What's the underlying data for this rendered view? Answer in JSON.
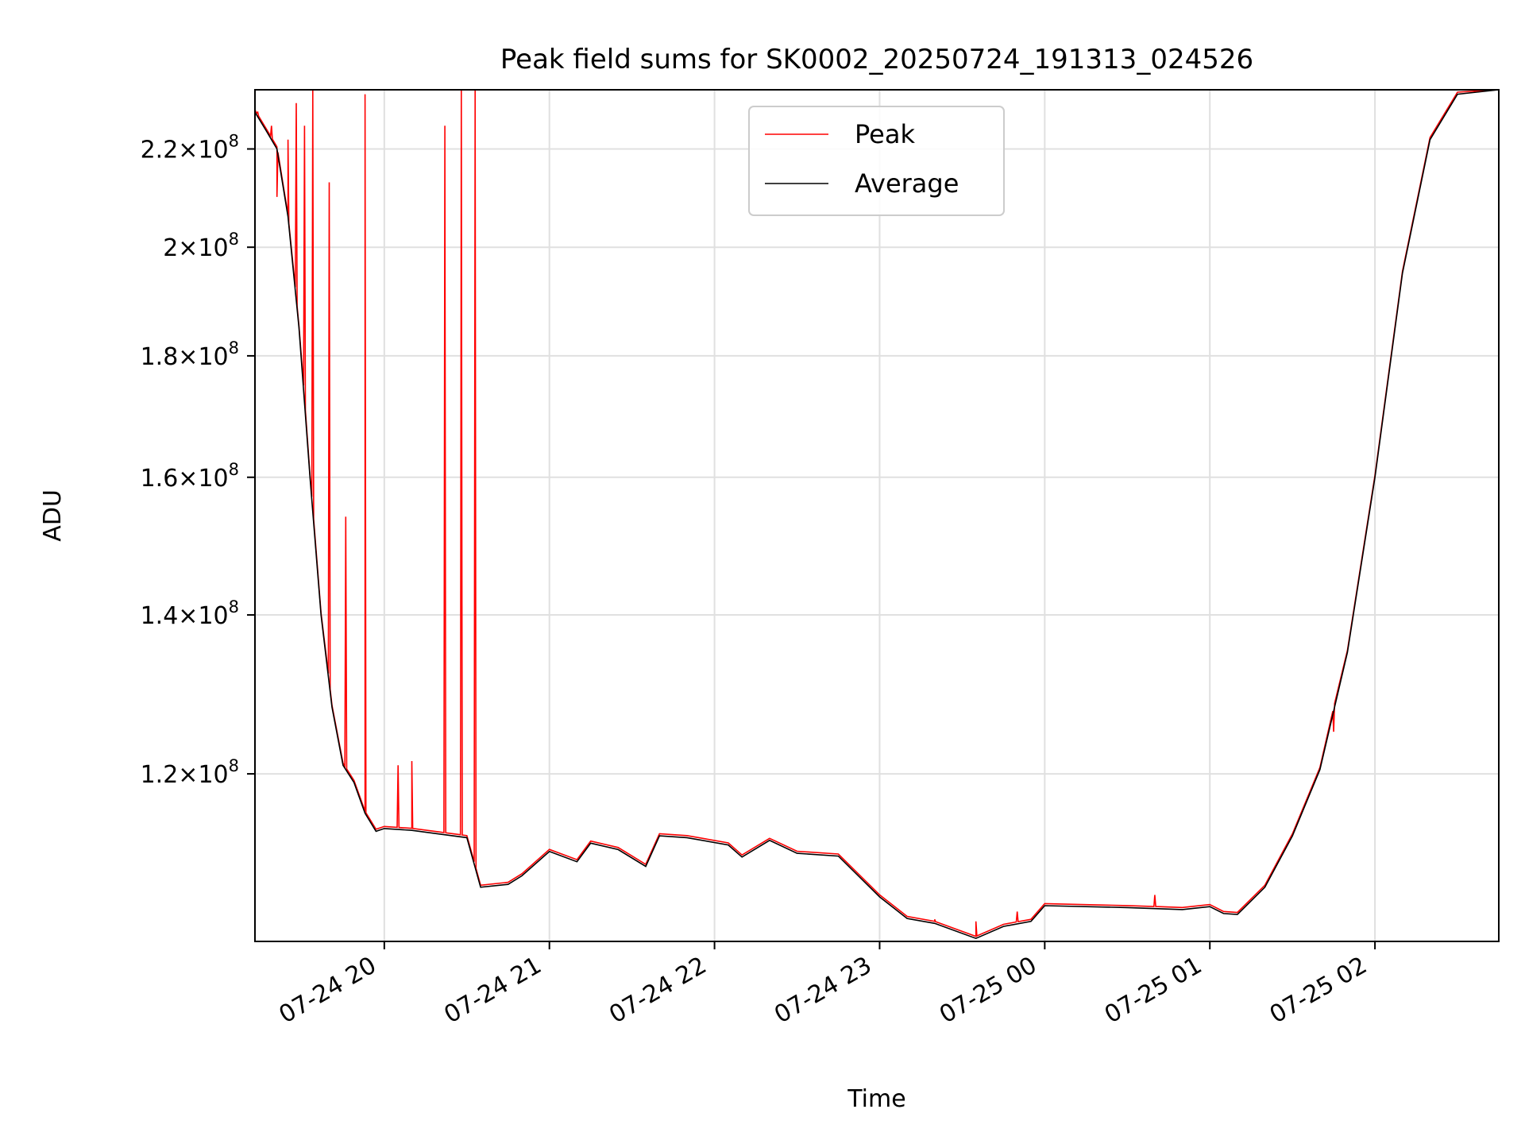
{
  "chart_data": {
    "type": "line",
    "title": "Peak field sums for SK0002_20250724_191313_024526",
    "xlabel": "Time",
    "ylabel": "ADU",
    "yscale": "log",
    "grid": true,
    "legend_position": "upper-center",
    "xlim": [
      "2025-07-24 19:13",
      "2025-07-25 02:45"
    ],
    "ylim": [
      102000000,
      233000000
    ],
    "x_ticks": [
      {
        "value": "2025-07-24 20:00",
        "label": "07-24 20"
      },
      {
        "value": "2025-07-24 21:00",
        "label": "07-24 21"
      },
      {
        "value": "2025-07-24 22:00",
        "label": "07-24 22"
      },
      {
        "value": "2025-07-24 23:00",
        "label": "07-24 23"
      },
      {
        "value": "2025-07-25 00:00",
        "label": "07-25 00"
      },
      {
        "value": "2025-07-25 01:00",
        "label": "07-25 01"
      },
      {
        "value": "2025-07-25 02:00",
        "label": "07-25 02"
      }
    ],
    "y_ticks": [
      {
        "value": 120000000,
        "mant": "1.2",
        "exp": "8"
      },
      {
        "value": 140000000,
        "mant": "1.4",
        "exp": "8"
      },
      {
        "value": 160000000,
        "mant": "1.6",
        "exp": "8"
      },
      {
        "value": 180000000,
        "mant": "1.8",
        "exp": "8"
      },
      {
        "value": 200000000,
        "mant": "2",
        "exp": "8"
      },
      {
        "value": 220000000,
        "mant": "2.2",
        "exp": "8"
      }
    ],
    "series": [
      {
        "name": "Average",
        "color": "#000000",
        "points": [
          [
            "2025-07-24 19:13",
            228000000
          ],
          [
            "2025-07-24 19:17",
            224000000
          ],
          [
            "2025-07-24 19:21",
            220000000
          ],
          [
            "2025-07-24 19:25",
            206000000
          ],
          [
            "2025-07-24 19:29",
            185000000
          ],
          [
            "2025-07-24 19:33",
            160000000
          ],
          [
            "2025-07-24 19:37",
            140000000
          ],
          [
            "2025-07-24 19:41",
            128000000
          ],
          [
            "2025-07-24 19:45",
            121000000
          ],
          [
            "2025-07-24 19:49",
            119000000
          ],
          [
            "2025-07-24 19:53",
            115500000
          ],
          [
            "2025-07-24 19:57",
            113500000
          ],
          [
            "2025-07-24 20:00",
            113800000
          ],
          [
            "2025-07-24 20:10",
            113600000
          ],
          [
            "2025-07-24 20:20",
            113200000
          ],
          [
            "2025-07-24 20:30",
            112800000
          ],
          [
            "2025-07-24 20:35",
            107500000
          ],
          [
            "2025-07-24 20:45",
            107800000
          ],
          [
            "2025-07-24 20:50",
            108700000
          ],
          [
            "2025-07-24 21:00",
            111300000
          ],
          [
            "2025-07-24 21:10",
            110200000
          ],
          [
            "2025-07-24 21:15",
            112200000
          ],
          [
            "2025-07-24 21:25",
            111500000
          ],
          [
            "2025-07-24 21:35",
            109700000
          ],
          [
            "2025-07-24 21:40",
            113000000
          ],
          [
            "2025-07-24 21:50",
            112800000
          ],
          [
            "2025-07-24 22:05",
            112000000
          ],
          [
            "2025-07-24 22:10",
            110700000
          ],
          [
            "2025-07-24 22:20",
            112500000
          ],
          [
            "2025-07-24 22:30",
            111100000
          ],
          [
            "2025-07-24 22:45",
            110800000
          ],
          [
            "2025-07-24 23:00",
            106500000
          ],
          [
            "2025-07-24 23:10",
            104300000
          ],
          [
            "2025-07-24 23:20",
            103800000
          ],
          [
            "2025-07-24 23:35",
            102300000
          ],
          [
            "2025-07-24 23:45",
            103500000
          ],
          [
            "2025-07-24 23:55",
            104000000
          ],
          [
            "2025-07-25 00:00",
            105600000
          ],
          [
            "2025-07-25 00:30",
            105400000
          ],
          [
            "2025-07-25 00:50",
            105200000
          ],
          [
            "2025-07-25 01:00",
            105500000
          ],
          [
            "2025-07-25 01:05",
            104800000
          ],
          [
            "2025-07-25 01:10",
            104700000
          ],
          [
            "2025-07-25 01:20",
            107500000
          ],
          [
            "2025-07-25 01:30",
            113000000
          ],
          [
            "2025-07-25 01:40",
            120500000
          ],
          [
            "2025-07-25 01:50",
            135000000
          ],
          [
            "2025-07-25 02:00",
            160000000
          ],
          [
            "2025-07-25 02:10",
            195000000
          ],
          [
            "2025-07-25 02:20",
            222000000
          ],
          [
            "2025-07-25 02:30",
            232000000
          ],
          [
            "2025-07-25 02:45",
            233000000
          ]
        ]
      },
      {
        "name": "Peak",
        "color": "#ff0000",
        "spikes": [
          [
            "2025-07-24 19:14",
            228000000
          ],
          [
            "2025-07-24 19:19",
            225000000
          ],
          [
            "2025-07-24 19:21",
            210000000
          ],
          [
            "2025-07-24 19:25",
            222000000
          ],
          [
            "2025-07-24 19:28",
            230000000
          ],
          [
            "2025-07-24 19:31",
            225000000
          ],
          [
            "2025-07-24 19:34",
            233000000
          ],
          [
            "2025-07-24 19:40",
            213000000
          ],
          [
            "2025-07-24 19:46",
            154000000
          ],
          [
            "2025-07-24 19:53",
            232000000
          ],
          [
            "2025-07-24 20:05",
            121000000
          ],
          [
            "2025-07-24 20:10",
            121500000
          ],
          [
            "2025-07-24 20:22",
            225000000
          ],
          [
            "2025-07-24 20:28",
            233000000
          ],
          [
            "2025-07-24 20:33",
            233000000
          ],
          [
            "2025-07-24 23:20",
            104200000
          ],
          [
            "2025-07-24 23:35",
            104000000
          ],
          [
            "2025-07-24 23:50",
            105000000
          ],
          [
            "2025-07-25 00:40",
            106700000
          ],
          [
            "2025-07-25 01:45",
            125000000
          ]
        ]
      }
    ]
  }
}
